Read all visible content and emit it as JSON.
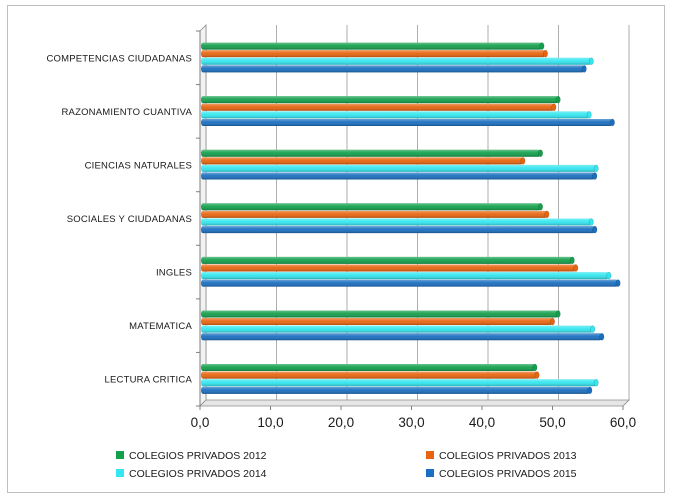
{
  "chart_data": {
    "type": "bar",
    "orientation": "horizontal",
    "categories": [
      "LECTURA CRITICA",
      "MATEMATICA",
      "INGLES",
      "SOCIALES Y CIUDADANAS",
      "CIENCIAS NATURALES",
      "RAZONAMIENTO CUANTIVA",
      "COMPETENCIAS CIUDADANAS"
    ],
    "series": [
      {
        "name": "COLEGIOS PRIVADOS 2012",
        "color": "#13a04c",
        "values": [
          47.5,
          50.8,
          52.8,
          48.3,
          48.3,
          50.8,
          48.5
        ]
      },
      {
        "name": "COLEGIOS PRIVADOS 2013",
        "color": "#e8650f",
        "values": [
          47.8,
          50.0,
          53.3,
          49.2,
          45.8,
          50.2,
          49.0
        ]
      },
      {
        "name": "COLEGIOS PRIVADOS 2014",
        "color": "#33e6f0",
        "values": [
          56.2,
          55.7,
          58.0,
          55.5,
          56.2,
          55.2,
          55.5
        ]
      },
      {
        "name": "COLEGIOS PRIVADOS 2015",
        "color": "#1a6fc0",
        "values": [
          55.3,
          57.0,
          59.3,
          56.0,
          56.0,
          58.5,
          54.5
        ]
      }
    ],
    "x_ticks": [
      "0,0",
      "10,0",
      "20,0",
      "30,0",
      "40,0",
      "50,0",
      "60,0"
    ],
    "xlim": [
      0,
      60
    ],
    "title": "",
    "xlabel": "",
    "ylabel": "",
    "legend_position": "bottom",
    "grid": "vertical"
  }
}
